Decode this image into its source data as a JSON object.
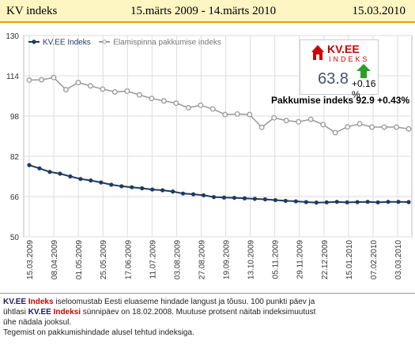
{
  "header": {
    "title": "KV indeks",
    "period": "15.märts 2009 - 14.märts 2010",
    "date": "15.03.2010"
  },
  "badge": {
    "logo_top": "KV.EE",
    "logo_bottom": "INDEKS",
    "value": "63.8",
    "change": "+0.16 %",
    "arrow_icon": "up-arrow",
    "arrow_color": "#2aa02a",
    "logo_color": "#cc0000"
  },
  "pakkumise": {
    "label": "Pakkumise indeks 92.9  +0.43%"
  },
  "footer": {
    "brand": "KV.EE",
    "brand_word": "Indeks",
    "line1_rest": " iseloomustab Eesti eluaseme hindade langust ja tõusu. 100 punkti päev ja",
    "line2_pre": "ühtlasi ",
    "line2_rest": " sünnipäev on 18.02.2008. Muutuse protsent näitab indeksimuutust",
    "line3": "ühe nädala jooksul.",
    "line4": "Tegemist on pakkumishindade alusel tehtud indeksiga.",
    "brand_word_2": "Indeksi"
  },
  "chart_data": {
    "type": "line",
    "title": "",
    "xlabel": "",
    "ylabel": "",
    "ylim": [
      50,
      130
    ],
    "yticks": [
      50,
      66,
      82,
      98,
      114,
      130
    ],
    "x_tick_labels": [
      "15.03.2009",
      "08.04.2009",
      "01.05.2009",
      "25.05.2009",
      "17.06.2009",
      "11.07.2009",
      "03.08.2009",
      "27.08.2009",
      "19.09.2009",
      "13.10.2009",
      "05.11.2009",
      "29.11.2009",
      "22.12.2009",
      "15.01.2010",
      "07.02.2010",
      "03.03.2010"
    ],
    "grid": true,
    "legend_placement": "top-left",
    "series": [
      {
        "name": "KV.EE Indeks",
        "color": "#1f3a5f",
        "values": [
          78.5,
          77.2,
          75.8,
          75.1,
          74.0,
          73.0,
          72.4,
          71.6,
          70.7,
          70.1,
          69.7,
          69.3,
          68.8,
          68.5,
          68.0,
          67.2,
          66.9,
          66.5,
          65.8,
          65.6,
          65.5,
          65.3,
          65.1,
          64.9,
          64.6,
          64.3,
          64.1,
          63.8,
          63.6,
          63.7,
          63.9,
          63.7,
          63.8,
          63.9,
          63.7,
          63.9,
          63.9,
          63.8
        ]
      },
      {
        "name": "Elamispinna pakkumise indeks",
        "color": "#999999",
        "values": [
          112.3,
          112.4,
          113.3,
          108.5,
          111.3,
          110.0,
          108.7,
          107.6,
          107.9,
          106.4,
          105.0,
          104.0,
          103.1,
          101.3,
          102.3,
          100.8,
          98.6,
          98.8,
          98.6,
          93.5,
          97.3,
          96.2,
          95.7,
          96.7,
          94.6,
          91.4,
          93.7,
          94.9,
          93.6,
          93.6,
          93.6,
          92.9
        ]
      }
    ]
  }
}
